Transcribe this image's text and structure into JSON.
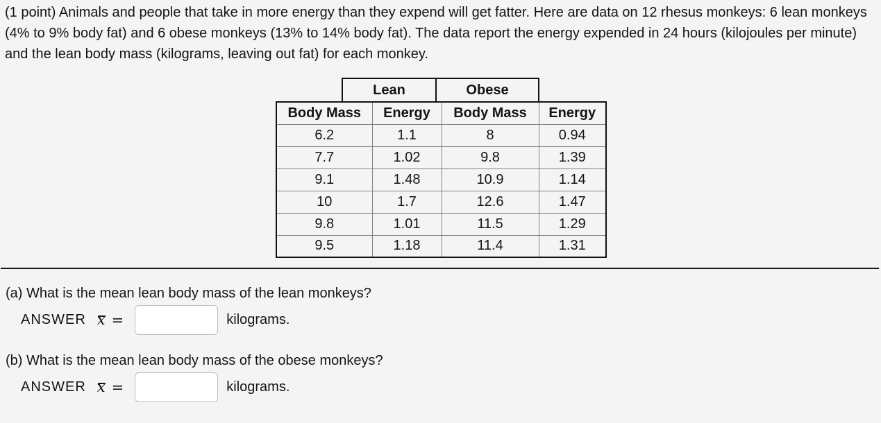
{
  "theme": {
    "background_color": "#f4f4f4",
    "text_color": "#141414",
    "table_outer_border_color": "#111111",
    "table_inner_border_color": "#808080",
    "input_border_color": "#bcbcbc",
    "divider_color": "#161616"
  },
  "problem": {
    "intro": "(1 point) Animals and people that take in more energy than they expend will get fatter. Here are data on 12 rhesus monkeys: 6 lean monkeys (4% to 9% body fat) and 6 obese monkeys (13% to 14% body fat). The data report the energy expended in 24 hours (kilojoules per minute) and the lean body mass (kilograms, leaving out fat) for each monkey."
  },
  "data_table": {
    "group_headers": {
      "lean": "Lean",
      "obese": "Obese"
    },
    "column_headers": [
      "Body Mass",
      "Energy",
      "Body Mass",
      "Energy"
    ],
    "rows": [
      [
        "6.2",
        "1.1",
        "8",
        "0.94"
      ],
      [
        "7.7",
        "1.02",
        "9.8",
        "1.39"
      ],
      [
        "9.1",
        "1.48",
        "10.9",
        "1.14"
      ],
      [
        "10",
        "1.7",
        "12.6",
        "1.47"
      ],
      [
        "9.8",
        "1.01",
        "11.5",
        "1.29"
      ],
      [
        "9.5",
        "1.18",
        "11.4",
        "1.31"
      ]
    ]
  },
  "questions": [
    {
      "label": "(a) What is the mean lean body mass of the lean monkeys?",
      "answer_word": "ANSWER",
      "math_var": "x",
      "equals_sign": "=",
      "input_value": "",
      "unit_text": "kilograms."
    },
    {
      "label": "(b) What is the mean lean body mass of the obese monkeys?",
      "answer_word": "ANSWER",
      "math_var": "x",
      "equals_sign": "=",
      "input_value": "",
      "unit_text": "kilograms."
    }
  ]
}
